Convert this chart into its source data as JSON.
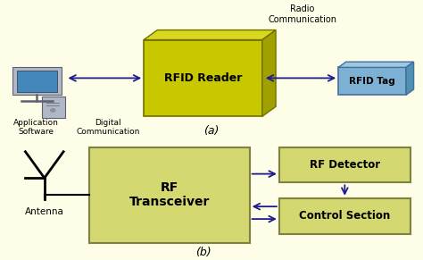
{
  "bg_color": "#FDFDE8",
  "rfid_reader_face": "#C8C800",
  "rfid_reader_top": "#D8D820",
  "rfid_reader_right": "#A0A000",
  "rfid_tag_face": "#7EB0D4",
  "rfid_tag_top": "#9FC8E0",
  "rfid_tag_right": "#5090B0",
  "rf_block_color": "#D4D870",
  "rf_block_edge": "#808040",
  "arrow_color": "#1C1C8C",
  "text_color": "#000000",
  "label_a": "(a)",
  "label_b": "(b)",
  "rfid_reader_label": "RFID Reader",
  "rfid_tag_label": "RFID Tag",
  "radio_comm_label": "Radio\nCommunication",
  "digital_comm_label": "Digital\nCommunication",
  "app_software_label": "Application\nSoftware",
  "rf_transceiver_label": "RF\nTransceiver",
  "rf_detector_label": "RF Detector",
  "control_section_label": "Control Section",
  "antenna_label": "Antenna"
}
